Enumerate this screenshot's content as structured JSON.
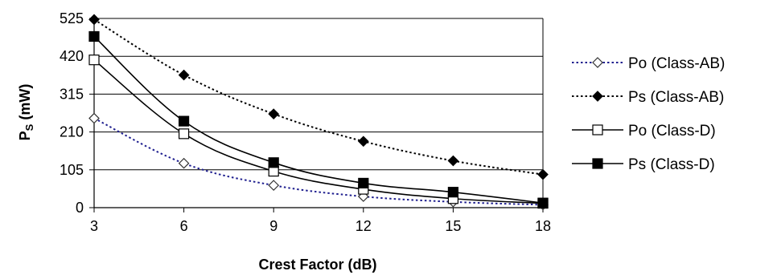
{
  "chart_data": {
    "type": "line",
    "xlabel": "Crest Factor (dB)",
    "ylabel": "P",
    "ylabel_sub": "S",
    "ylabel_unit": "(mW)",
    "x": [
      3,
      6,
      9,
      12,
      15,
      18
    ],
    "xticks": [
      "3",
      "6",
      "9",
      "12",
      "15",
      "18"
    ],
    "yticks": [
      "0",
      "105",
      "210",
      "315",
      "420",
      "525"
    ],
    "xlim": [
      3,
      18
    ],
    "ylim": [
      0,
      525
    ],
    "grid": "horizontal",
    "legend_position": "right",
    "series": [
      {
        "name": "Po (Class-AB)",
        "values": [
          248,
          123,
          62,
          31,
          16,
          8
        ],
        "marker": "diamond-open",
        "line": "dotted",
        "color": "#1f1f8f"
      },
      {
        "name": "Ps (Class-AB)",
        "values": [
          522,
          368,
          260,
          184,
          130,
          92
        ],
        "marker": "diamond-filled",
        "line": "dotted",
        "color": "#000000"
      },
      {
        "name": "Po (Class-D)",
        "values": [
          410,
          205,
          101,
          51,
          25,
          12
        ],
        "marker": "square-open",
        "line": "solid",
        "color": "#000000"
      },
      {
        "name": "Ps (Class-D)",
        "values": [
          475,
          240,
          125,
          68,
          43,
          13
        ],
        "marker": "square-filled",
        "line": "solid",
        "color": "#000000"
      }
    ]
  }
}
